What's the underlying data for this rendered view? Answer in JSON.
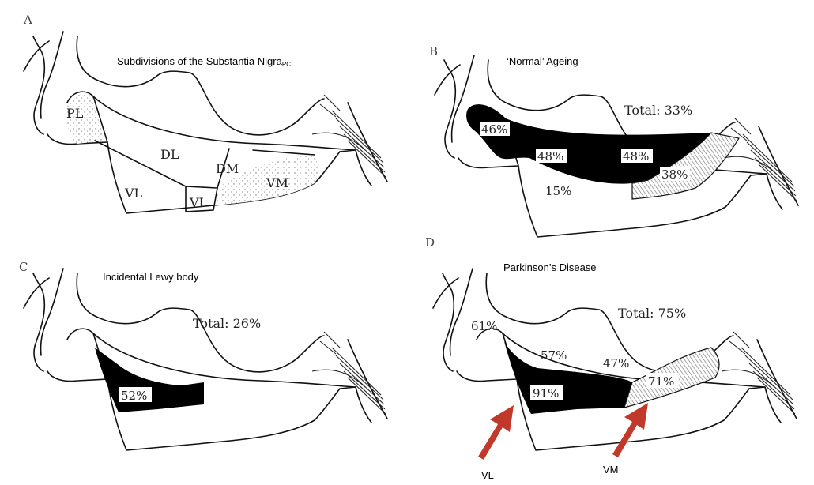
{
  "panels": {
    "a": {
      "letter": "A",
      "caption": "Subdivisions of the Substantia Nigra",
      "caption_sub": "PC",
      "regions": {
        "pl": "PL",
        "dl": "DL",
        "dm": "DM",
        "vl": "VL",
        "vi": "VI",
        "vm": "VM"
      }
    },
    "b": {
      "letter": "B",
      "caption": "‘Normal’ Ageing",
      "total": "Total: 33%",
      "values": {
        "pl": "46%",
        "dl": "48%",
        "dm": "48%",
        "vl": "15%",
        "vm": "38%"
      }
    },
    "c": {
      "letter": "C",
      "caption": "Incidental Lewy body",
      "total": "Total: 26%",
      "values": {
        "vl": "52%"
      }
    },
    "d": {
      "letter": "D",
      "caption": "Parkinson’s Disease",
      "total": "Total: 75%",
      "values": {
        "pl": "61%",
        "dl": "57%",
        "dm": "47%",
        "vl": "91%",
        "vm": "71%"
      },
      "arrows": {
        "vl": "VL",
        "vm": "VM"
      }
    }
  },
  "colors": {
    "arrow": "#c0392b",
    "fill_black": "#000000",
    "hatch": "#777777"
  }
}
